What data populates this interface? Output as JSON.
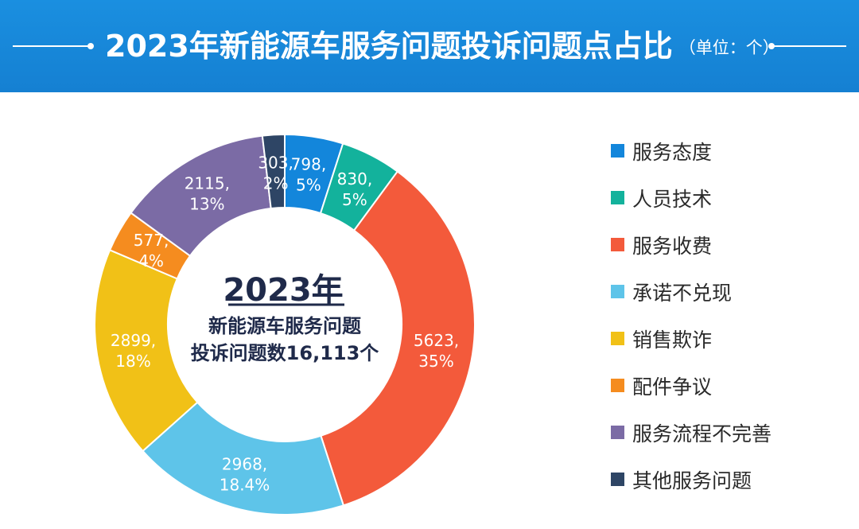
{
  "header": {
    "title": "2023年新能源车服务问题投诉问题点占比",
    "unit": "（单位：个）"
  },
  "center": {
    "line1": "2023年",
    "line2": "新能源车服务问题",
    "line3": "投诉问题数16,113个"
  },
  "colors": {
    "header_bg": "#1a8fe0",
    "center_text": "#1f2a4a"
  },
  "chart_data": {
    "type": "pie",
    "style": "donut",
    "total": 16113,
    "legend_position": "right",
    "series": [
      {
        "name": "服务态度",
        "value": 798,
        "label": "798,\n5%",
        "color": "#1386db"
      },
      {
        "name": "人员技术",
        "value": 830,
        "label": "830,\n5%",
        "color": "#13b29c"
      },
      {
        "name": "服务收费",
        "value": 5623,
        "label": "5623,\n35%",
        "color": "#f35a3b"
      },
      {
        "name": "承诺不兑现",
        "value": 2968,
        "label": "2968,\n18.4%",
        "color": "#5ec4e9"
      },
      {
        "name": "销售欺诈",
        "value": 2899,
        "label": "2899,\n18%",
        "color": "#f1c117"
      },
      {
        "name": "配件争议",
        "value": 577,
        "label": "577,\n4%",
        "color": "#f58c1f"
      },
      {
        "name": "服务流程不完善",
        "value": 2115,
        "label": "2115,\n13%",
        "color": "#7b6ba5"
      },
      {
        "name": "其他服务问题",
        "value": 303,
        "label": "303,\n2%",
        "color": "#2e4565"
      }
    ]
  }
}
